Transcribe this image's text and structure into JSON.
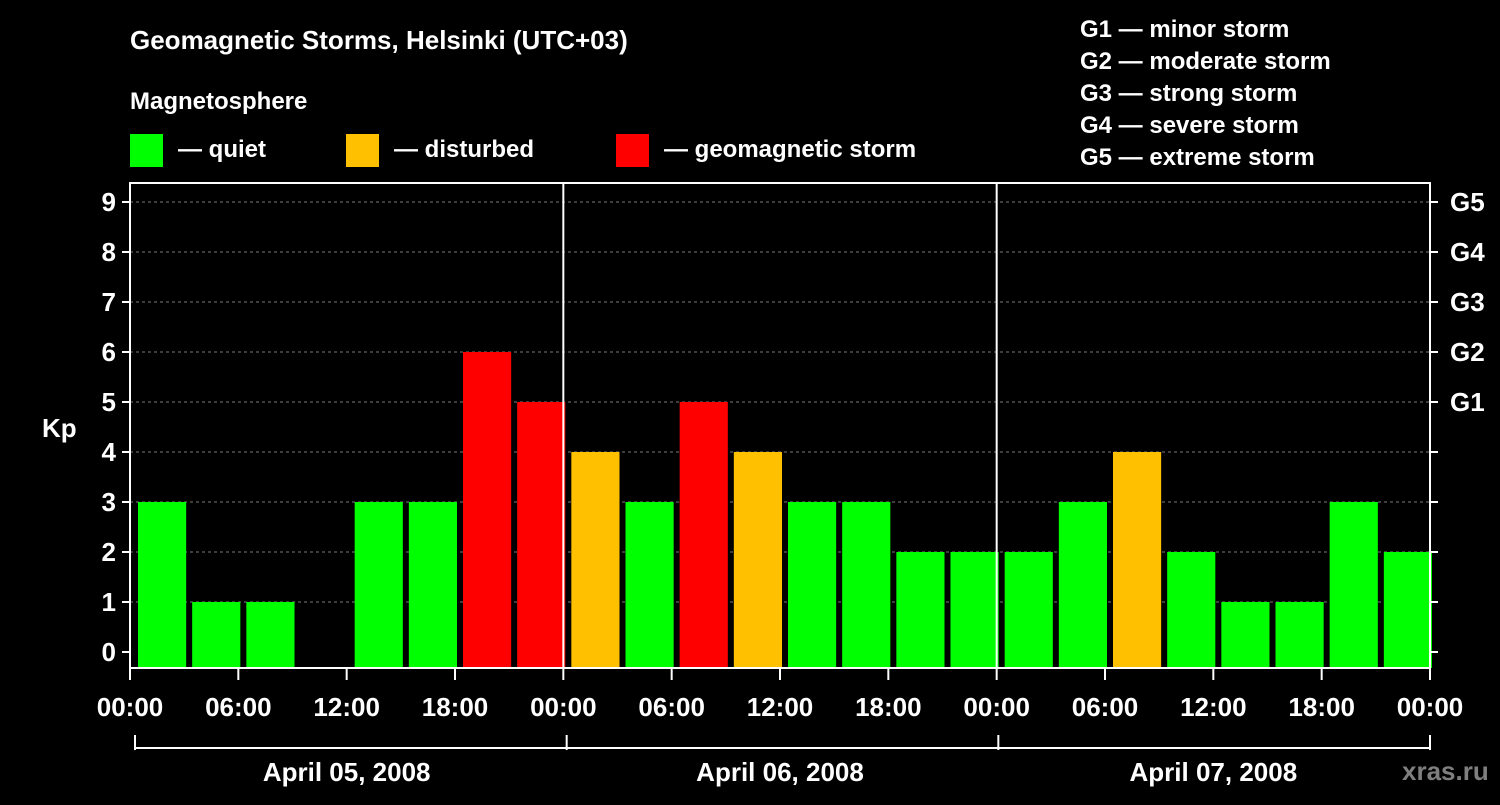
{
  "chart_data": {
    "type": "bar",
    "title": "Geomagnetic Storms, Helsinki (UTC+03)",
    "ylabel": "Kp",
    "ylim": [
      0,
      9
    ],
    "y_ticks": [
      "0",
      "1",
      "2",
      "3",
      "4",
      "5",
      "6",
      "7",
      "8",
      "9"
    ],
    "right_axis": {
      "labels": [
        {
          "kp": 5,
          "label": "G1"
        },
        {
          "kp": 6,
          "label": "G2"
        },
        {
          "kp": 7,
          "label": "G3"
        },
        {
          "kp": 8,
          "label": "G4"
        },
        {
          "kp": 9,
          "label": "G5"
        }
      ]
    },
    "x_tick_labels": [
      "00:00",
      "06:00",
      "12:00",
      "18:00",
      "00:00",
      "06:00",
      "12:00",
      "18:00",
      "00:00",
      "06:00",
      "12:00",
      "18:00",
      "00:00"
    ],
    "days": [
      "April 05, 2008",
      "April 06, 2008",
      "April 07, 2008"
    ],
    "interval_hours": 3,
    "kp_values": [
      3,
      1,
      1,
      0,
      3,
      3,
      6,
      5,
      4,
      3,
      5,
      4,
      3,
      3,
      2,
      2,
      2,
      3,
      4,
      2,
      1,
      1,
      3,
      2
    ],
    "status": [
      "quiet",
      "quiet",
      "quiet",
      "quiet",
      "quiet",
      "quiet",
      "storm",
      "storm",
      "disturbed",
      "quiet",
      "storm",
      "disturbed",
      "quiet",
      "quiet",
      "quiet",
      "quiet",
      "quiet",
      "quiet",
      "disturbed",
      "quiet",
      "quiet",
      "quiet",
      "quiet",
      "quiet"
    ],
    "grid": "dashed horizontal at each Kp",
    "colors": {
      "quiet": "#00ff00",
      "disturbed": "#ffc000",
      "storm": "#ff0000"
    }
  },
  "legend": {
    "heading": "Magnetosphere",
    "items": [
      {
        "key": "quiet",
        "label": "— quiet",
        "color": "#00ff00"
      },
      {
        "key": "disturbed",
        "label": "— disturbed",
        "color": "#ffc000"
      },
      {
        "key": "storm",
        "label": "— geomagnetic storm",
        "color": "#ff0000"
      }
    ]
  },
  "storm_scale": [
    "G1 — minor storm",
    "G2 — moderate storm",
    "G3 — strong storm",
    "G4 — severe storm",
    "G5 — extreme storm"
  ],
  "watermark": "xras.ru"
}
